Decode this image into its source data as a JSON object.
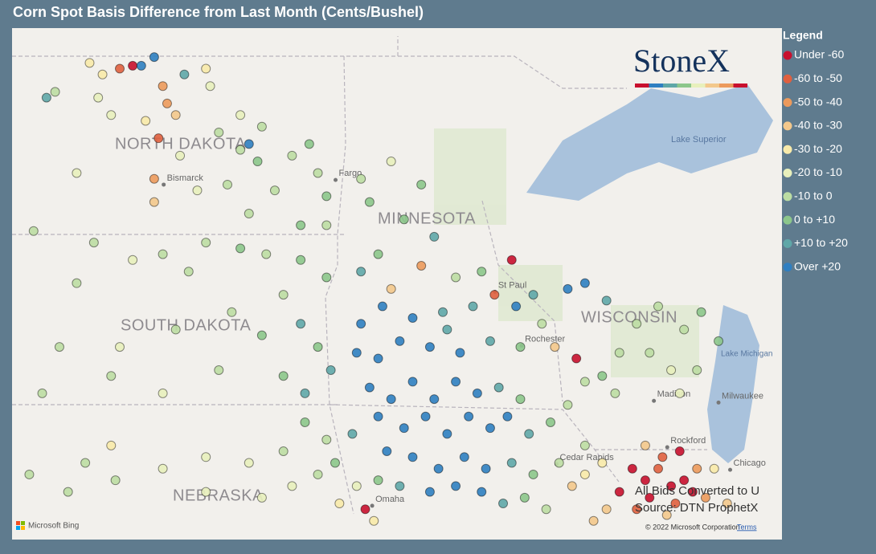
{
  "map": {
    "title": "Corn Spot Basis Difference from Last Month (Cents/Bushel)",
    "legend_title": "Legend",
    "classes": [
      {
        "name": "Under -60",
        "color": "#c8102e"
      },
      {
        "name": "-60 to -50",
        "color": "#e0603f"
      },
      {
        "name": "-50 to -40",
        "color": "#ec9a5c"
      },
      {
        "name": "-40 to -30",
        "color": "#f3c88c"
      },
      {
        "name": "-30 to -20",
        "color": "#f8eaaa"
      },
      {
        "name": "-20 to -10",
        "color": "#e8f0bc"
      },
      {
        "name": "-10 to 0",
        "color": "#bcdda3"
      },
      {
        "name": "0 to +10",
        "color": "#8cc68b"
      },
      {
        "name": "+10 to +20",
        "color": "#5fa7a8"
      },
      {
        "name": "Over +20",
        "color": "#2f7fc1"
      }
    ],
    "logo": "StoneX",
    "state_labels": [
      "NORTH DAKOTA",
      "MINNESOTA",
      "SOUTH DAKOTA",
      "WISCONSIN",
      "NEBRASKA"
    ],
    "water_labels": [
      "Lake Superior",
      "Lake Michigan"
    ],
    "cities": [
      {
        "name": "Bismarck",
        "lon": -100.78,
        "lat": 46.8
      },
      {
        "name": "Fargo",
        "lon": -96.79,
        "lat": 46.88
      },
      {
        "name": "St Paul",
        "lon": -93.09,
        "lat": 44.95
      },
      {
        "name": "Rochester",
        "lon": -92.47,
        "lat": 44.02
      },
      {
        "name": "Madison",
        "lon": -89.4,
        "lat": 43.07
      },
      {
        "name": "Milwaukee",
        "lon": -87.9,
        "lat": 43.04
      },
      {
        "name": "Rockford",
        "lon": -89.09,
        "lat": 42.27
      },
      {
        "name": "Chicago",
        "lon": -87.63,
        "lat": 41.88
      },
      {
        "name": "Cedar Rapids",
        "lon": -91.66,
        "lat": 41.98
      },
      {
        "name": "Omaha",
        "lon": -95.94,
        "lat": 41.26
      }
    ],
    "notes": [
      "All Bids Converted to U",
      "Source: DTN ProphetX"
    ],
    "attribution": "© 2022 Microsoft Corporation",
    "terms": "Terms",
    "provider": "Microsoft Bing",
    "points": [
      [
        -102.5,
        48.9,
        4
      ],
      [
        -102.2,
        48.7,
        4
      ],
      [
        -101.8,
        48.8,
        1
      ],
      [
        -101.5,
        48.85,
        0
      ],
      [
        -100.8,
        48.5,
        2
      ],
      [
        -100.7,
        48.2,
        2
      ],
      [
        -100.5,
        48.0,
        3
      ],
      [
        -102.3,
        48.3,
        5
      ],
      [
        -103.3,
        48.4,
        6
      ],
      [
        -102.0,
        48.0,
        5
      ],
      [
        -101.2,
        47.9,
        4
      ],
      [
        -99.8,
        48.8,
        4
      ],
      [
        -99.7,
        48.5,
        5
      ],
      [
        -100.9,
        47.6,
        1
      ],
      [
        -100.4,
        47.3,
        5
      ],
      [
        -102.8,
        47.0,
        5
      ],
      [
        -101.0,
        46.9,
        2
      ],
      [
        -101.0,
        46.5,
        3
      ],
      [
        -99.0,
        48.0,
        5
      ],
      [
        -98.5,
        47.8,
        6
      ],
      [
        -101.0,
        49.0,
        9
      ],
      [
        -101.3,
        48.85,
        9
      ],
      [
        -100.3,
        48.7,
        8
      ],
      [
        -98.8,
        47.5,
        9
      ],
      [
        -103.5,
        48.3,
        8
      ],
      [
        -99.5,
        47.7,
        6
      ],
      [
        -99.0,
        47.4,
        6
      ],
      [
        -98.6,
        47.2,
        7
      ],
      [
        -97.8,
        47.3,
        6
      ],
      [
        -97.4,
        47.5,
        7
      ],
      [
        -97.2,
        47.0,
        6
      ],
      [
        -97.0,
        46.6,
        7
      ],
      [
        -98.2,
        46.7,
        6
      ],
      [
        -99.3,
        46.8,
        6
      ],
      [
        -100.0,
        46.7,
        5
      ],
      [
        -98.8,
        46.3,
        6
      ],
      [
        -97.6,
        46.1,
        7
      ],
      [
        -97.0,
        46.1,
        6
      ],
      [
        -103.8,
        46.0,
        6
      ],
      [
        -102.4,
        45.8,
        6
      ],
      [
        -102.8,
        45.1,
        6
      ],
      [
        -101.5,
        45.5,
        5
      ],
      [
        -100.8,
        45.6,
        6
      ],
      [
        -100.2,
        45.3,
        6
      ],
      [
        -99.8,
        45.8,
        6
      ],
      [
        -99.0,
        45.7,
        7
      ],
      [
        -98.4,
        45.6,
        6
      ],
      [
        -97.6,
        45.5,
        7
      ],
      [
        -97.0,
        45.2,
        7
      ],
      [
        -98.0,
        44.9,
        6
      ],
      [
        -99.2,
        44.6,
        6
      ],
      [
        -100.5,
        44.3,
        6
      ],
      [
        -101.8,
        44.0,
        5
      ],
      [
        -103.2,
        44.0,
        6
      ],
      [
        -98.5,
        44.2,
        7
      ],
      [
        -97.6,
        44.4,
        8
      ],
      [
        -97.2,
        44.0,
        7
      ],
      [
        -98.0,
        43.5,
        7
      ],
      [
        -99.5,
        43.6,
        6
      ],
      [
        -100.8,
        43.2,
        5
      ],
      [
        -102.0,
        43.5,
        6
      ],
      [
        -97.5,
        43.2,
        8
      ],
      [
        -96.9,
        43.6,
        8
      ],
      [
        -103.6,
        43.2,
        6
      ],
      [
        -102.0,
        42.3,
        4
      ],
      [
        -96.2,
        46.9,
        6
      ],
      [
        -96.0,
        46.5,
        7
      ],
      [
        -95.5,
        47.2,
        5
      ],
      [
        -94.8,
        46.8,
        7
      ],
      [
        -95.2,
        46.2,
        7
      ],
      [
        -94.5,
        45.9,
        8
      ],
      [
        -95.8,
        45.6,
        7
      ],
      [
        -96.2,
        45.3,
        8
      ],
      [
        -95.5,
        45.0,
        3
      ],
      [
        -94.8,
        45.4,
        2
      ],
      [
        -94.0,
        45.2,
        6
      ],
      [
        -93.4,
        45.3,
        7
      ],
      [
        -92.7,
        45.5,
        0
      ],
      [
        -93.1,
        44.9,
        1
      ],
      [
        -93.6,
        44.7,
        8
      ],
      [
        -94.3,
        44.6,
        8
      ],
      [
        -95.0,
        44.5,
        9
      ],
      [
        -95.7,
        44.7,
        9
      ],
      [
        -96.2,
        44.4,
        9
      ],
      [
        -95.3,
        44.1,
        9
      ],
      [
        -94.6,
        44.0,
        9
      ],
      [
        -93.9,
        43.9,
        9
      ],
      [
        -93.2,
        44.1,
        8
      ],
      [
        -92.5,
        44.0,
        7
      ],
      [
        -92.0,
        44.4,
        6
      ],
      [
        -91.7,
        44.0,
        3
      ],
      [
        -91.2,
        43.8,
        0
      ],
      [
        -95.8,
        43.8,
        9
      ],
      [
        -96.3,
        43.9,
        9
      ],
      [
        -94.2,
        44.3,
        8
      ],
      [
        -96.0,
        43.3,
        9
      ],
      [
        -95.5,
        43.1,
        9
      ],
      [
        -95.0,
        43.4,
        9
      ],
      [
        -94.5,
        43.1,
        9
      ],
      [
        -94.0,
        43.4,
        9
      ],
      [
        -93.5,
        43.2,
        9
      ],
      [
        -93.0,
        43.3,
        8
      ],
      [
        -92.5,
        43.1,
        7
      ],
      [
        -95.8,
        42.8,
        9
      ],
      [
        -95.2,
        42.6,
        9
      ],
      [
        -94.7,
        42.8,
        9
      ],
      [
        -94.2,
        42.5,
        9
      ],
      [
        -93.7,
        42.8,
        9
      ],
      [
        -93.2,
        42.6,
        9
      ],
      [
        -92.8,
        42.8,
        9
      ],
      [
        -92.3,
        42.5,
        8
      ],
      [
        -91.8,
        42.7,
        7
      ],
      [
        -91.4,
        43.0,
        6
      ],
      [
        -96.4,
        42.5,
        8
      ],
      [
        -95.6,
        42.2,
        9
      ],
      [
        -95.0,
        42.1,
        9
      ],
      [
        -94.4,
        41.9,
        9
      ],
      [
        -93.8,
        42.1,
        9
      ],
      [
        -93.3,
        41.9,
        9
      ],
      [
        -92.7,
        42.0,
        8
      ],
      [
        -92.2,
        41.8,
        7
      ],
      [
        -91.6,
        42.0,
        6
      ],
      [
        -91.0,
        42.3,
        6
      ],
      [
        -95.8,
        41.7,
        7
      ],
      [
        -95.3,
        41.6,
        8
      ],
      [
        -94.6,
        41.5,
        9
      ],
      [
        -94.0,
        41.6,
        9
      ],
      [
        -93.4,
        41.5,
        9
      ],
      [
        -92.9,
        41.3,
        8
      ],
      [
        -92.4,
        41.4,
        7
      ],
      [
        -91.9,
        41.2,
        6
      ],
      [
        -91.3,
        41.6,
        3
      ],
      [
        -97.5,
        42.7,
        7
      ],
      [
        -97.0,
        42.4,
        6
      ],
      [
        -98.0,
        42.2,
        6
      ],
      [
        -98.8,
        42.0,
        5
      ],
      [
        -99.8,
        42.1,
        5
      ],
      [
        -100.8,
        41.9,
        5
      ],
      [
        -101.9,
        41.7,
        6
      ],
      [
        -97.2,
        41.8,
        6
      ],
      [
        -96.8,
        42.0,
        7
      ],
      [
        -96.3,
        41.6,
        5
      ],
      [
        -97.8,
        41.6,
        5
      ],
      [
        -96.1,
        41.2,
        0
      ],
      [
        -95.9,
        41.0,
        4
      ],
      [
        -96.7,
        41.3,
        4
      ],
      [
        -98.5,
        41.4,
        5
      ],
      [
        -99.8,
        41.5,
        5
      ],
      [
        -103.0,
        41.5,
        6
      ],
      [
        -103.9,
        41.8,
        6
      ],
      [
        -102.6,
        42.0,
        6
      ],
      [
        -92.6,
        44.7,
        9
      ],
      [
        -92.2,
        44.9,
        8
      ],
      [
        -91.4,
        45.0,
        9
      ],
      [
        -91.0,
        45.1,
        9
      ],
      [
        -90.5,
        44.8,
        8
      ],
      [
        -89.8,
        44.4,
        6
      ],
      [
        -89.3,
        44.7,
        6
      ],
      [
        -88.7,
        44.3,
        6
      ],
      [
        -88.3,
        44.6,
        7
      ],
      [
        -87.9,
        44.1,
        7
      ],
      [
        -89.5,
        43.9,
        6
      ],
      [
        -89.0,
        43.6,
        5
      ],
      [
        -88.4,
        43.6,
        6
      ],
      [
        -90.2,
        43.9,
        6
      ],
      [
        -90.6,
        43.5,
        7
      ],
      [
        -91.0,
        43.4,
        6
      ],
      [
        -88.8,
        43.2,
        5
      ],
      [
        -90.3,
        43.2,
        6
      ],
      [
        -89.9,
        41.9,
        0
      ],
      [
        -89.6,
        41.7,
        0
      ],
      [
        -89.3,
        41.9,
        1
      ],
      [
        -89.0,
        41.6,
        0
      ],
      [
        -88.7,
        41.7,
        0
      ],
      [
        -88.5,
        41.5,
        0
      ],
      [
        -88.9,
        41.3,
        1
      ],
      [
        -89.5,
        41.4,
        0
      ],
      [
        -90.2,
        41.5,
        0
      ],
      [
        -89.8,
        41.2,
        1
      ],
      [
        -88.4,
        41.9,
        2
      ],
      [
        -89.2,
        42.1,
        1
      ],
      [
        -88.8,
        42.2,
        0
      ],
      [
        -88.2,
        41.4,
        2
      ],
      [
        -89.1,
        41.1,
        3
      ],
      [
        -90.5,
        41.2,
        3
      ],
      [
        -89.6,
        42.3,
        3
      ],
      [
        -88.0,
        41.9,
        4
      ],
      [
        -87.7,
        41.3,
        3
      ],
      [
        -90.6,
        42.0,
        4
      ],
      [
        -91.0,
        41.8,
        4
      ],
      [
        -90.8,
        41.0,
        3
      ]
    ]
  }
}
